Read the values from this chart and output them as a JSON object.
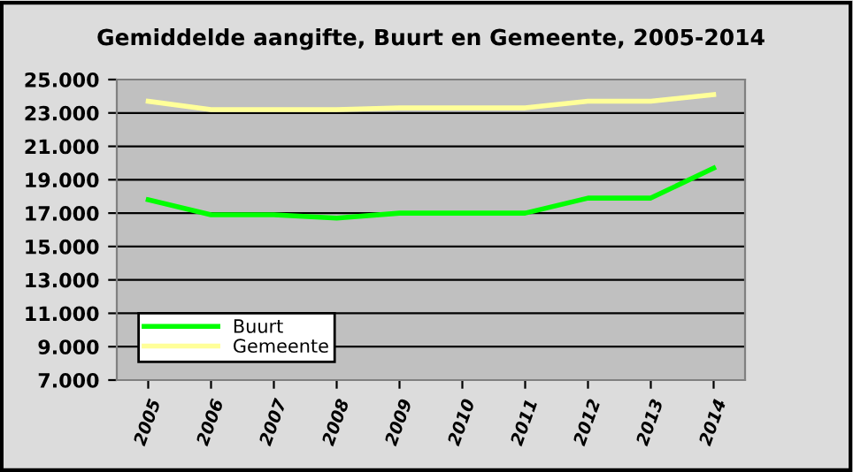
{
  "chart_data": {
    "type": "line",
    "title": "Gemiddelde aangifte, Buurt en Gemeente, 2005-2014",
    "categories": [
      "2005",
      "2006",
      "2007",
      "2008",
      "2009",
      "2010",
      "2011",
      "2012",
      "2013",
      "2014"
    ],
    "series": [
      {
        "name": "Buurt",
        "color": "#00ff00",
        "values": [
          17800,
          16900,
          16900,
          16700,
          17000,
          17000,
          17000,
          17900,
          17900,
          19700
        ]
      },
      {
        "name": "Gemeente",
        "color": "#ffff99",
        "values": [
          23700,
          23200,
          23200,
          23200,
          23300,
          23300,
          23300,
          23700,
          23700,
          24100
        ]
      }
    ],
    "ylim": [
      7000,
      25000
    ],
    "yticks": [
      {
        "value": 7000,
        "label": "7.000"
      },
      {
        "value": 9000,
        "label": "9.000"
      },
      {
        "value": 11000,
        "label": "11.000"
      },
      {
        "value": 13000,
        "label": "13.000"
      },
      {
        "value": 15000,
        "label": "15.000"
      },
      {
        "value": 17000,
        "label": "17.000"
      },
      {
        "value": 19000,
        "label": "19.000"
      },
      {
        "value": 21000,
        "label": "21.000"
      },
      {
        "value": 23000,
        "label": "23.000"
      },
      {
        "value": 25000,
        "label": "25.000"
      }
    ],
    "grid": "y",
    "legend": "bottom left",
    "line_style": "solid",
    "marker": "none"
  }
}
